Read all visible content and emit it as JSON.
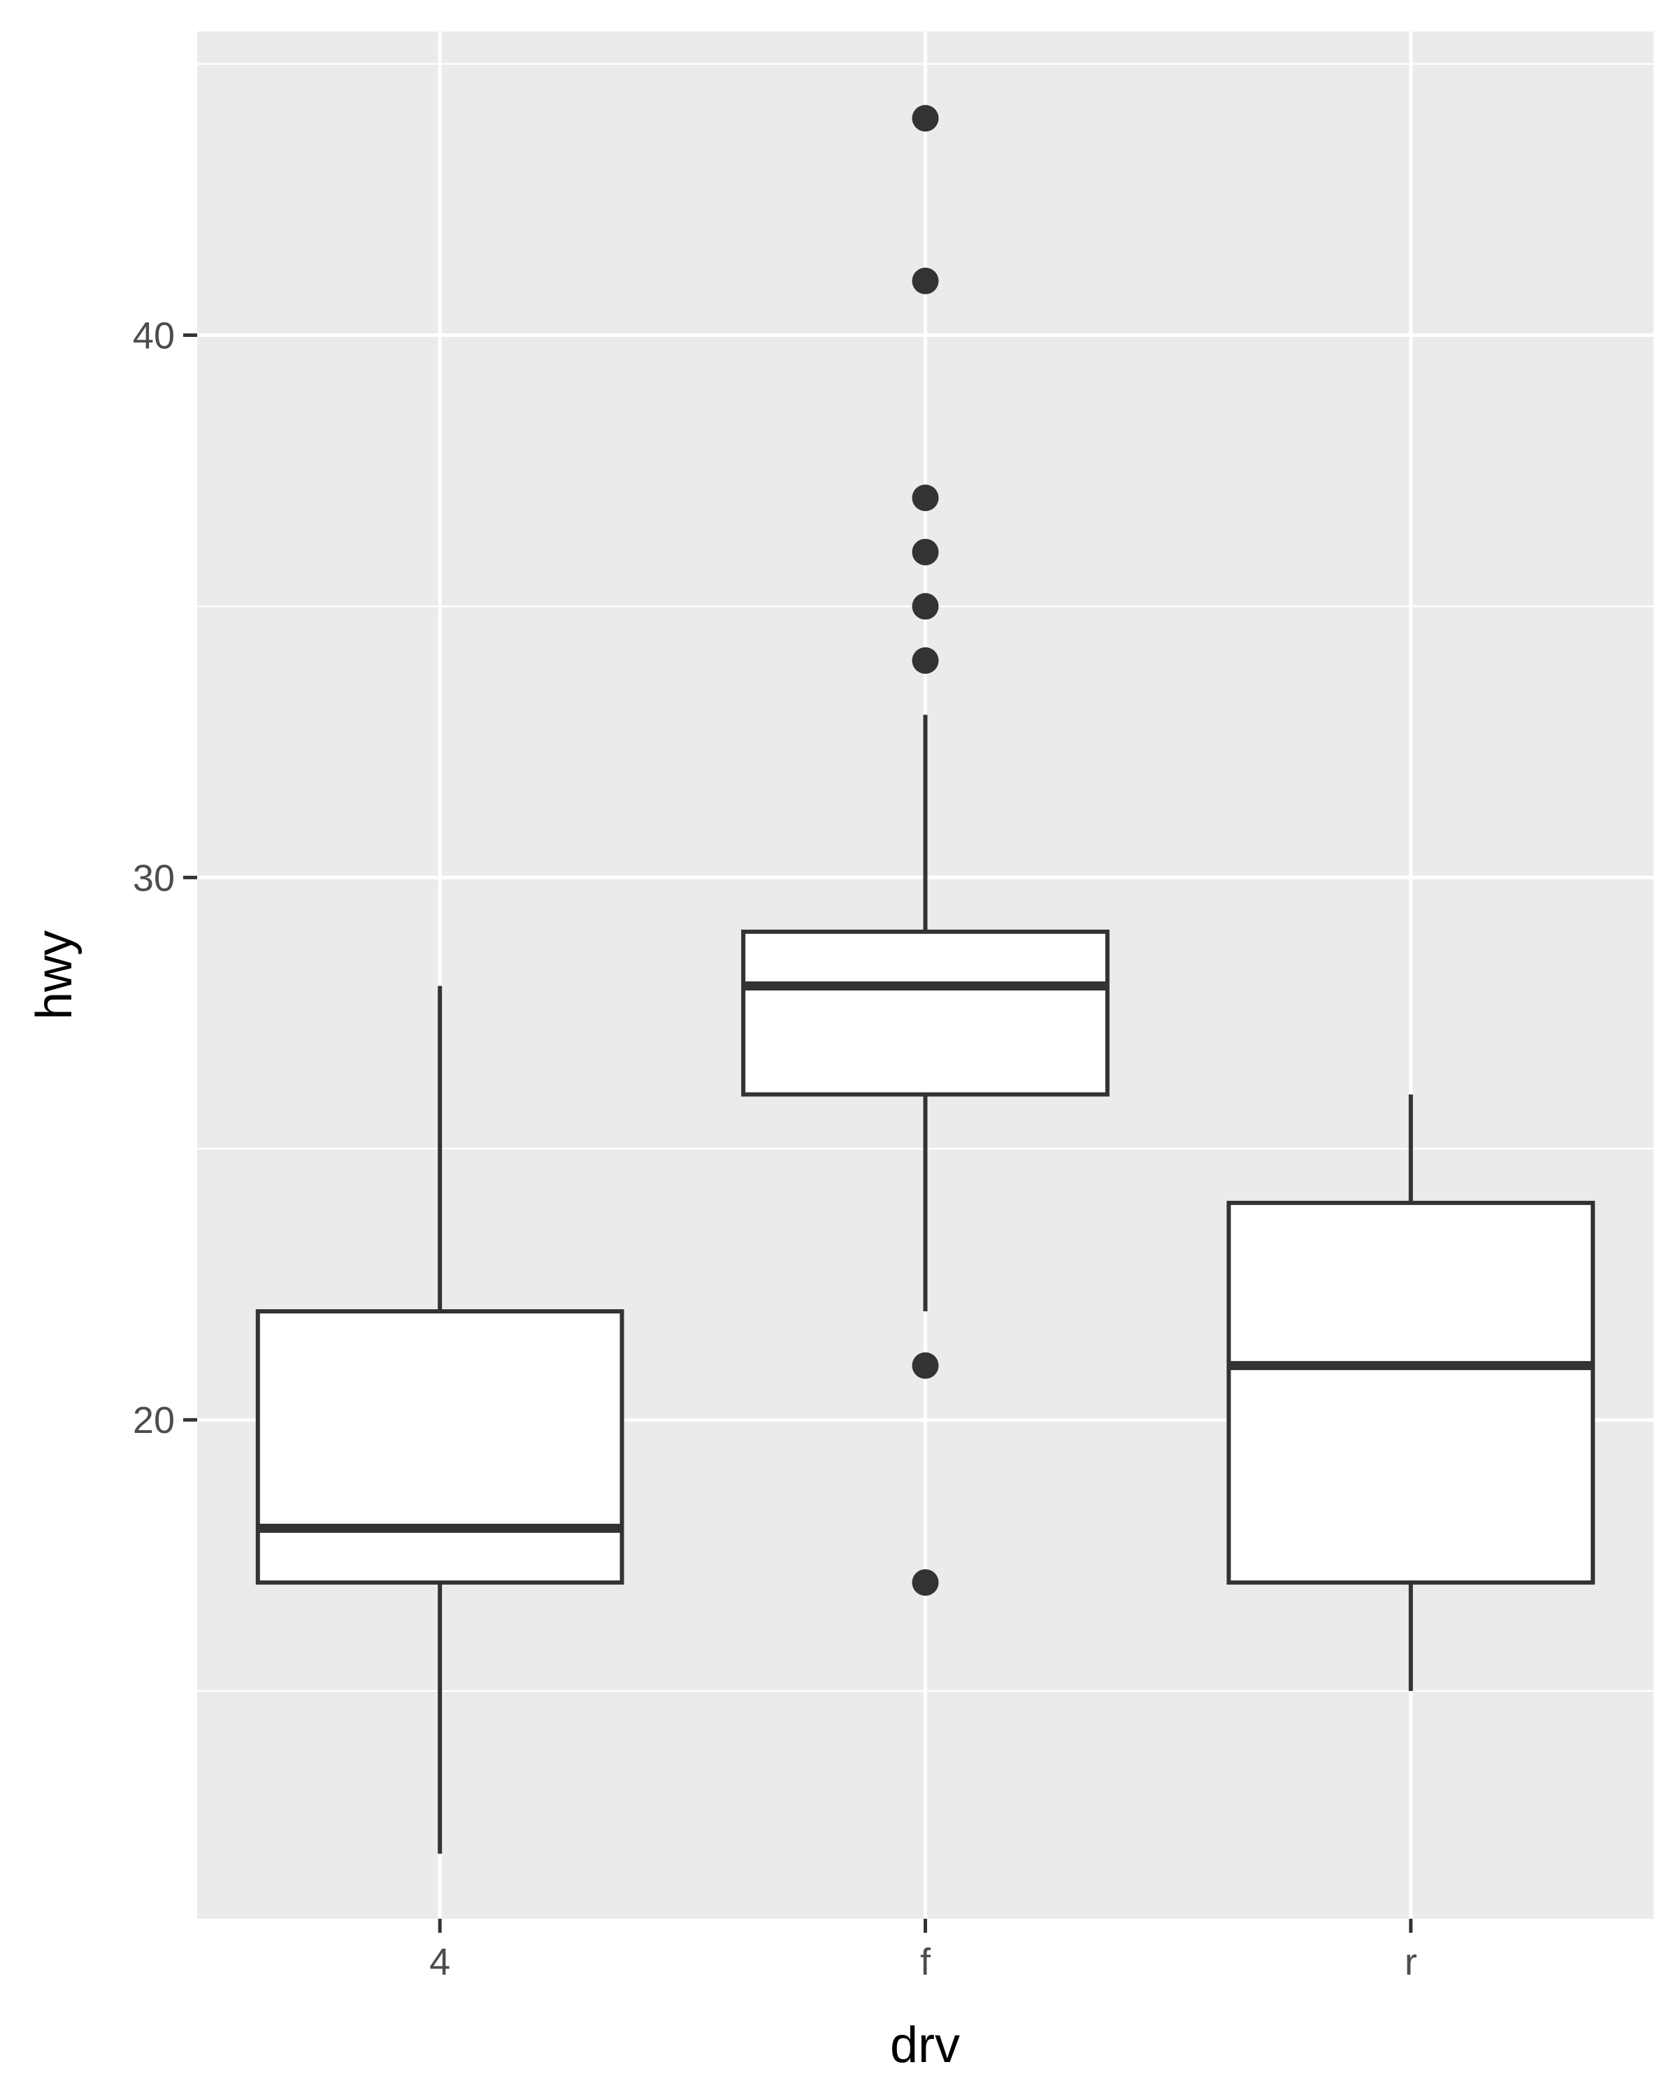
{
  "chart_data": {
    "type": "boxplot",
    "xlabel": "drv",
    "ylabel": "hwy",
    "categories": [
      "4",
      "f",
      "r"
    ],
    "ylim": [
      10.8,
      45.6
    ],
    "y_ticks": [
      20,
      30,
      40
    ],
    "y_minor_ticks": [
      15,
      25,
      35,
      45
    ],
    "grid": true,
    "boxes": [
      {
        "category": "4",
        "lower_whisker": 12,
        "q1": 17,
        "median": 18,
        "q3": 22,
        "upper_whisker": 28,
        "outliers": []
      },
      {
        "category": "f",
        "lower_whisker": 22,
        "q1": 26,
        "median": 28,
        "q3": 29,
        "upper_whisker": 33,
        "outliers": [
          44,
          41,
          37,
          36,
          35,
          34,
          21,
          17
        ]
      },
      {
        "category": "r",
        "lower_whisker": 15,
        "q1": 17,
        "median": 21,
        "q3": 24,
        "upper_whisker": 26,
        "outliers": []
      }
    ],
    "colors": {
      "panel": "#ebebeb",
      "grid": "#ffffff",
      "box_fill": "#ffffff",
      "box_line": "#333333",
      "tick": "#333333"
    }
  }
}
